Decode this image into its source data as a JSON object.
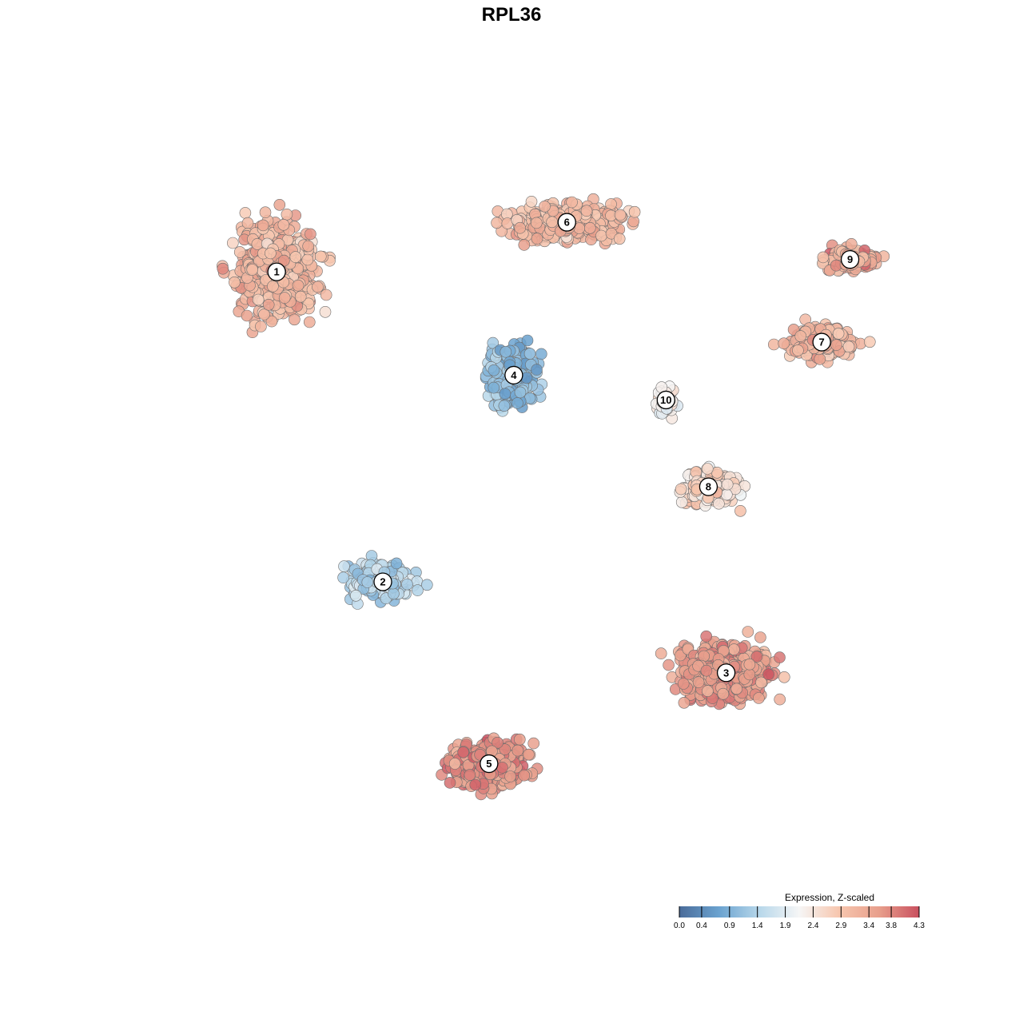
{
  "chart_data": {
    "type": "scatter",
    "title": "RPL36",
    "xlabel": "",
    "ylabel": "",
    "grid": false,
    "legend": {
      "title": "Expression, Z-scaled",
      "placement": "bottom-right",
      "min": 0.0,
      "max": 4.3,
      "ticks": [
        "0.0",
        "0.4",
        "0.9",
        "1.4",
        "1.9",
        "2.4",
        "2.9",
        "3.4",
        "3.8",
        "4.3"
      ],
      "colors": [
        "#4a6c9a",
        "#6ba3d0",
        "#b7d7ea",
        "#f6f6f6",
        "#f7c6ae",
        "#e89f8c",
        "#c9505f"
      ]
    },
    "clusters": [
      {
        "label": "1",
        "x": -0.72,
        "y": 0.55,
        "mean_expression": 3.2,
        "spread": [
          0.22,
          0.2
        ]
      },
      {
        "label": "2",
        "x": -0.42,
        "y": -0.2,
        "mean_expression": 1.4,
        "spread": [
          0.16,
          0.08
        ]
      },
      {
        "label": "3",
        "x": 0.55,
        "y": -0.42,
        "mean_expression": 3.6,
        "spread": [
          0.22,
          0.12
        ]
      },
      {
        "label": "4",
        "x": -0.05,
        "y": 0.3,
        "mean_expression": 1.0,
        "spread": [
          0.12,
          0.12
        ]
      },
      {
        "label": "5",
        "x": -0.12,
        "y": -0.64,
        "mean_expression": 3.7,
        "spread": [
          0.18,
          0.1
        ]
      },
      {
        "label": "6",
        "x": 0.1,
        "y": 0.67,
        "mean_expression": 3.1,
        "spread": [
          0.28,
          0.08
        ]
      },
      {
        "label": "7",
        "x": 0.82,
        "y": 0.38,
        "mean_expression": 3.2,
        "spread": [
          0.18,
          0.07
        ]
      },
      {
        "label": "8",
        "x": 0.5,
        "y": 0.03,
        "mean_expression": 2.6,
        "spread": [
          0.14,
          0.07
        ]
      },
      {
        "label": "9",
        "x": 0.9,
        "y": 0.58,
        "mean_expression": 3.4,
        "spread": [
          0.12,
          0.05
        ]
      },
      {
        "label": "10",
        "x": 0.38,
        "y": 0.24,
        "mean_expression": 2.2,
        "spread": [
          0.05,
          0.06
        ]
      }
    ]
  }
}
